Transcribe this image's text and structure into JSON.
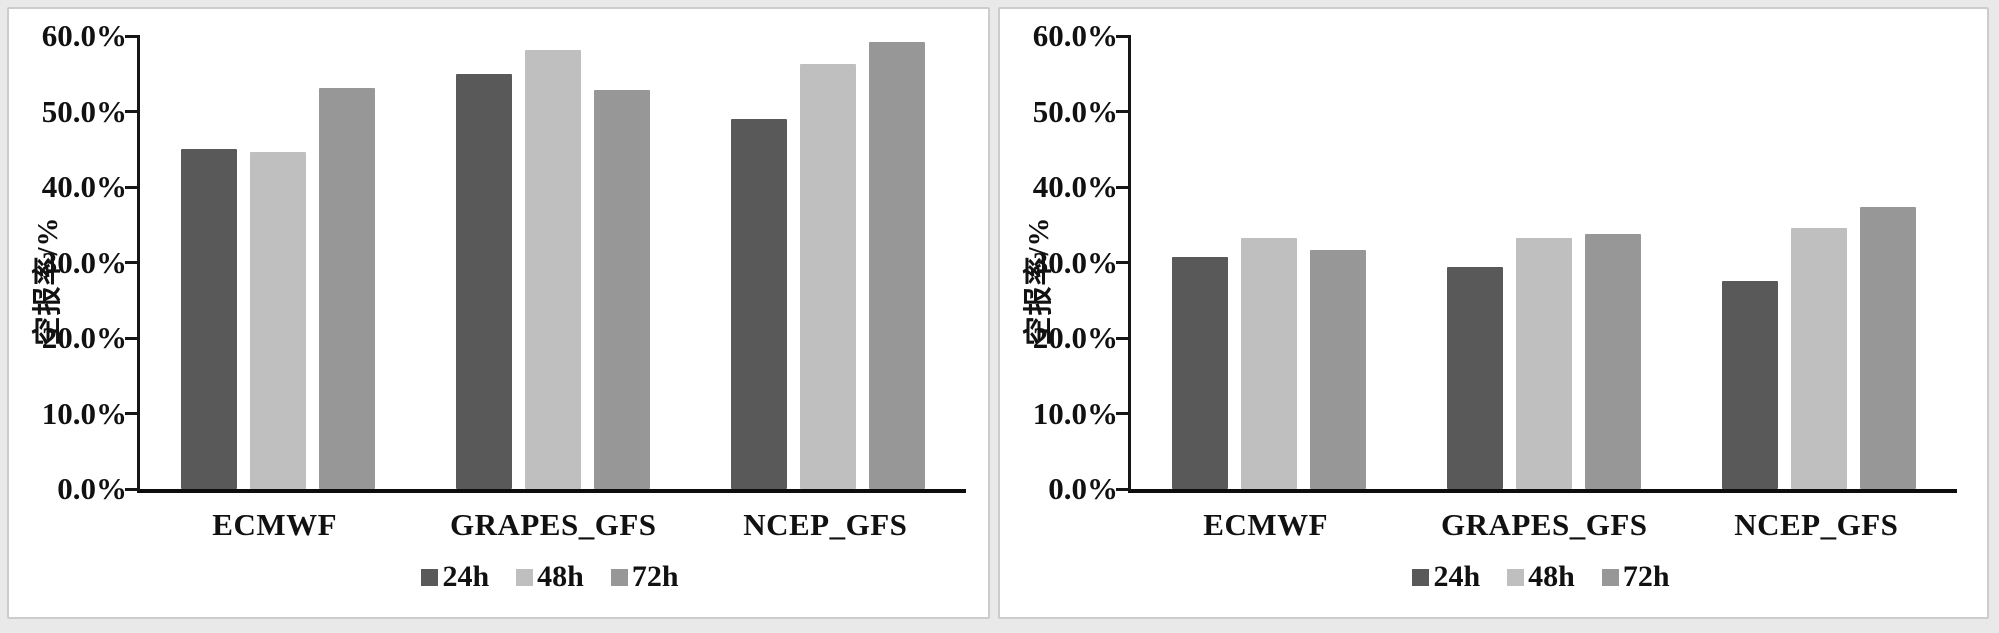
{
  "page": {
    "background_color": "#e9e9e9",
    "panel_background": "#ffffff",
    "panel_border_color": "#cccccc",
    "axis_color": "#161616"
  },
  "chart_data": [
    {
      "type": "bar",
      "title": "",
      "xlabel": "",
      "ylabel": "空报率/%",
      "categories": [
        "ECMWF",
        "GRAPES_GFS",
        "NCEP_GFS"
      ],
      "series": [
        {
          "name": "24h",
          "color": "#595959",
          "values": [
            45.0,
            55.0,
            49.0
          ]
        },
        {
          "name": "48h",
          "color": "#bfbfbf",
          "values": [
            44.6,
            58.1,
            56.3
          ]
        },
        {
          "name": "72h",
          "color": "#979797",
          "values": [
            53.1,
            52.8,
            59.2
          ]
        }
      ],
      "ylim": [
        0,
        60
      ],
      "ytick_labels": [
        "0.0%",
        "10.0%",
        "20.0%",
        "30.0%",
        "40.0%",
        "50.0%",
        "60.0%"
      ],
      "grid": false,
      "legend_position": "bottom"
    },
    {
      "type": "bar",
      "title": "",
      "xlabel": "",
      "ylabel": "空报率/%",
      "categories": [
        "ECMWF",
        "GRAPES_GFS",
        "NCEP_GFS"
      ],
      "series": [
        {
          "name": "24h",
          "color": "#595959",
          "values": [
            30.7,
            29.4,
            27.5
          ]
        },
        {
          "name": "48h",
          "color": "#bfbfbf",
          "values": [
            33.3,
            33.2,
            34.6
          ]
        },
        {
          "name": "72h",
          "color": "#979797",
          "values": [
            31.6,
            33.8,
            37.3
          ]
        }
      ],
      "ylim": [
        0,
        60
      ],
      "ytick_labels": [
        "0.0%",
        "10.0%",
        "20.0%",
        "30.0%",
        "40.0%",
        "50.0%",
        "60.0%"
      ],
      "grid": false,
      "legend_position": "bottom"
    }
  ]
}
